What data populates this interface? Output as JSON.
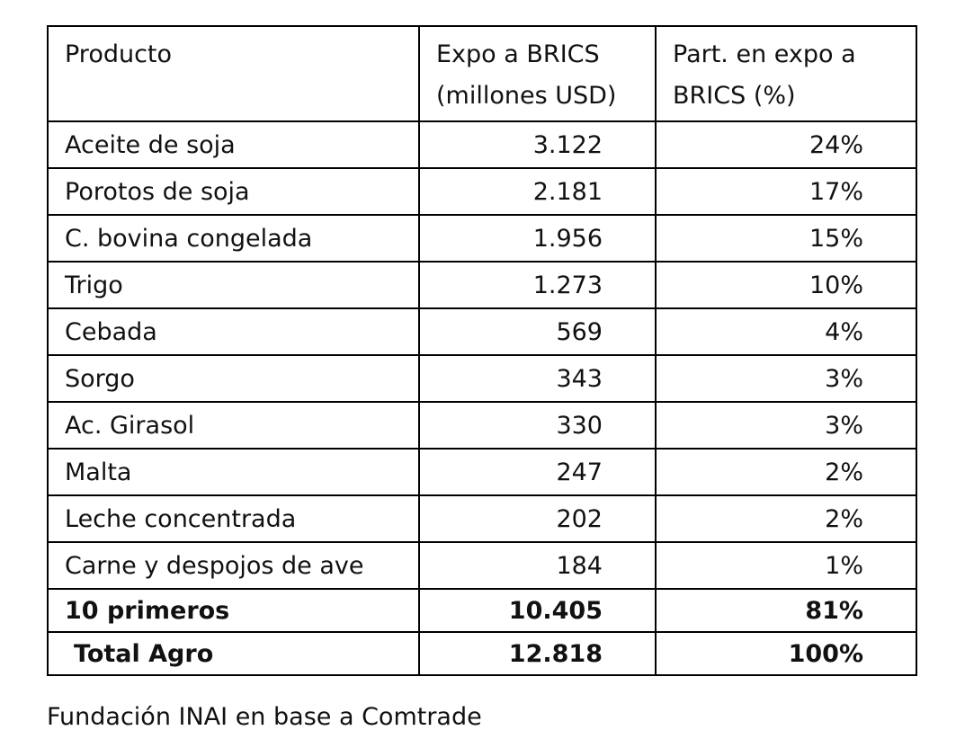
{
  "table": {
    "header": [
      "Producto",
      "Expo a BRICS (millones USD)",
      "Part. en expo a BRICS (%)"
    ],
    "rows": [
      [
        "Aceite de soja",
        "3.122",
        "24%"
      ],
      [
        "Porotos de soja",
        "2.181",
        "17%"
      ],
      [
        "C. bovina congelada",
        "1.956",
        "15%"
      ],
      [
        "Trigo",
        "1.273",
        "10%"
      ],
      [
        "Cebada",
        "569",
        "4%"
      ],
      [
        "Sorgo",
        "343",
        "3%"
      ],
      [
        "Ac. Girasol",
        "330",
        "3%"
      ],
      [
        "Malta",
        "247",
        "2%"
      ],
      [
        "Leche concentrada",
        "202",
        "2%"
      ],
      [
        "Carne y despojos de ave",
        "184",
        "1%"
      ]
    ],
    "totals": [
      [
        "10 primeros",
        "10.405",
        "81%"
      ],
      [
        "Total Agro",
        "12.818",
        "100%"
      ]
    ]
  },
  "source": "Fundación INAI en base a Comtrade"
}
